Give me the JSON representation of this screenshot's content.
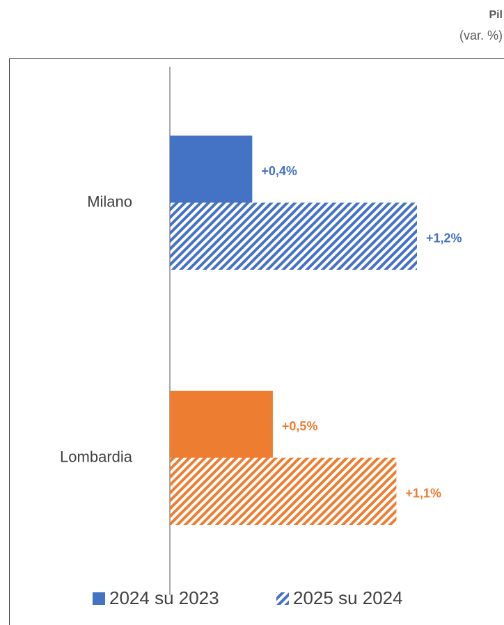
{
  "chart_data": {
    "type": "hbar",
    "title": "Pil",
    "subtitle": "(var. %)",
    "categories": [
      "Milano",
      "Lombardia"
    ],
    "category_colors": [
      "#4472c4",
      "#ed7d31"
    ],
    "series": [
      {
        "name": "2024 su 2023",
        "pattern": "solid",
        "values": [
          0.4,
          0.5
        ],
        "value_labels": [
          "+0,4%",
          "+0,5%"
        ]
      },
      {
        "name": "2025 su 2024",
        "pattern": "hatch",
        "values": [
          1.2,
          1.1
        ],
        "value_labels": [
          "+1,2%",
          "+1,1%"
        ]
      }
    ],
    "legend": "bottom"
  }
}
